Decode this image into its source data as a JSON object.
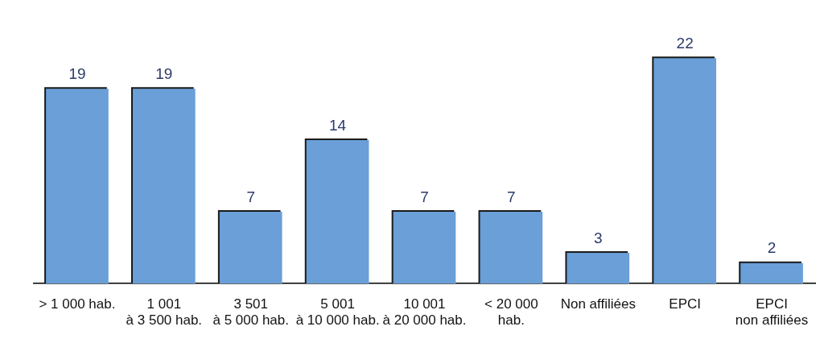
{
  "chart_data": {
    "type": "bar",
    "categories": [
      "> 1 000 hab.",
      "1 001\nà 3 500 hab.",
      "3 501\nà 5 000 hab.",
      "5 001\nà 10 000 hab.",
      "10 001\nà 20 000 hab.",
      "< 20 000\nhab.",
      "Non affiliées",
      "EPCI",
      "EPCI\nnon affiliées"
    ],
    "values": [
      19,
      19,
      7,
      14,
      7,
      7,
      3,
      22,
      2
    ],
    "color": "#6a9fd8",
    "data_labels": true,
    "grid": false,
    "legend": false
  }
}
